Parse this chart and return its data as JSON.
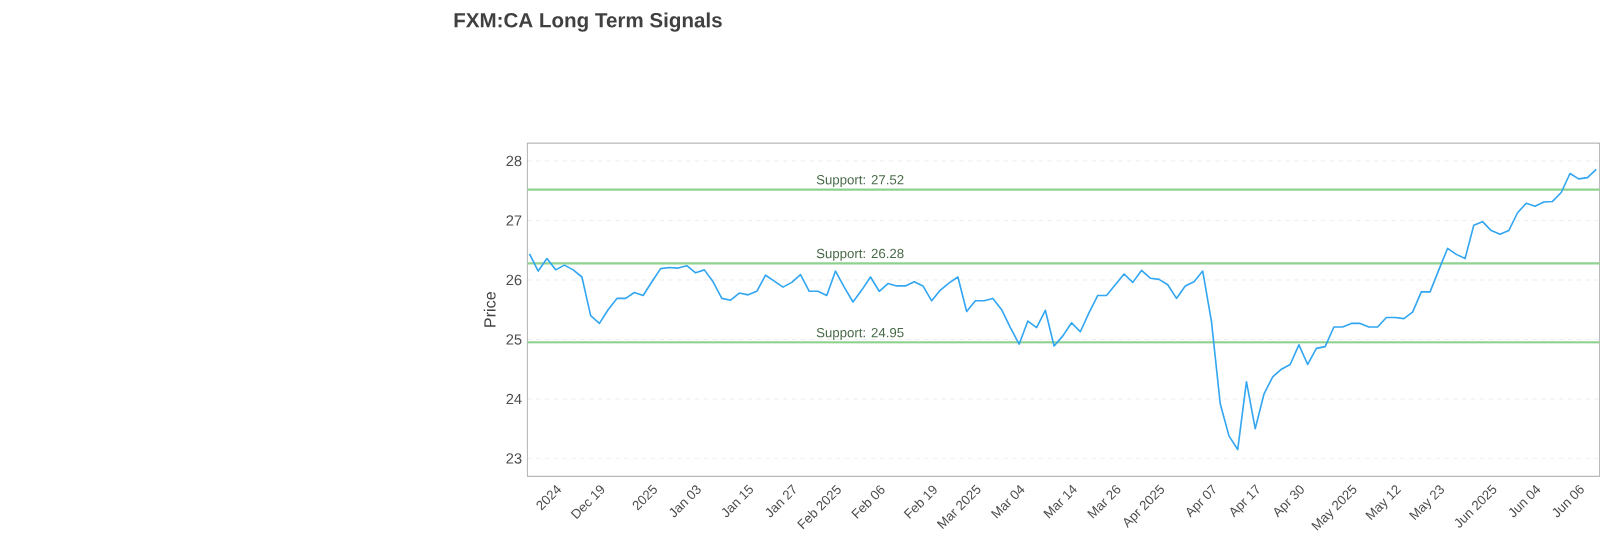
{
  "chart_data": {
    "type": "line",
    "title": "FXM:CA Long Term Signals",
    "ylabel": "Price",
    "categories": [
      null,
      null,
      null,
      "2024",
      null,
      null,
      null,
      null,
      "Dec 19",
      null,
      null,
      null,
      null,
      null,
      "2025",
      null,
      null,
      null,
      null,
      "Jan 03",
      null,
      null,
      null,
      null,
      null,
      "Jan 15",
      null,
      null,
      null,
      null,
      "Jan 27",
      null,
      null,
      null,
      null,
      "Feb 2025",
      null,
      null,
      null,
      null,
      "Feb 06",
      null,
      null,
      null,
      null,
      null,
      "Feb 19",
      null,
      null,
      null,
      null,
      "Mar 2025",
      null,
      null,
      null,
      null,
      "Mar 04",
      null,
      null,
      null,
      null,
      null,
      "Mar 14",
      null,
      null,
      null,
      null,
      "Mar 26",
      null,
      null,
      null,
      null,
      "Apr 2025",
      null,
      null,
      null,
      null,
      null,
      "Apr 07",
      null,
      null,
      null,
      null,
      "Apr 17",
      null,
      null,
      null,
      null,
      "Apr 30",
      null,
      null,
      null,
      null,
      null,
      "May 2025",
      null,
      null,
      null,
      null,
      "May 12",
      null,
      null,
      null,
      null,
      "May 23",
      null,
      null,
      null,
      null,
      null,
      "Jun 2025",
      null,
      null,
      null,
      null,
      "Jun 04",
      null,
      null,
      null,
      null,
      "Jun 06",
      null,
      null
    ],
    "series": [
      {
        "color": "#33a6f2",
        "values": [
          26.44,
          26.15,
          26.36,
          26.17,
          26.25,
          26.17,
          26.05,
          25.4,
          25.27,
          25.5,
          25.69,
          25.69,
          25.79,
          25.74,
          25.97,
          26.19,
          26.21,
          26.2,
          26.24,
          26.12,
          26.17,
          25.97,
          25.69,
          25.66,
          25.78,
          25.75,
          25.81,
          26.08,
          25.98,
          25.88,
          25.96,
          26.09,
          25.81,
          25.81,
          25.74,
          26.15,
          25.88,
          25.63,
          25.83,
          26.05,
          25.81,
          25.94,
          25.9,
          25.9,
          25.97,
          25.9,
          25.65,
          25.83,
          25.95,
          26.05,
          25.47,
          25.65,
          25.65,
          25.69,
          25.5,
          25.2,
          24.92,
          25.31,
          25.2,
          25.49,
          24.89,
          25.06,
          25.28,
          25.13,
          25.45,
          25.74,
          25.74,
          25.92,
          26.1,
          25.96,
          26.16,
          26.03,
          26.01,
          25.92,
          25.69,
          25.9,
          25.97,
          26.15,
          25.3,
          23.92,
          23.38,
          23.15,
          24.29,
          23.5,
          24.08,
          24.37,
          24.5,
          24.58,
          24.91,
          24.58,
          24.85,
          24.88,
          25.21,
          25.21,
          25.27,
          25.27,
          25.21,
          25.21,
          25.37,
          25.37,
          25.35,
          25.46,
          25.8,
          25.8,
          26.17,
          26.53,
          26.43,
          26.36,
          26.92,
          26.98,
          26.83,
          26.77,
          26.83,
          27.13,
          27.29,
          27.24,
          27.31,
          27.32,
          27.47,
          27.79,
          27.7,
          27.72,
          27.86
        ]
      }
    ],
    "ylim": [
      22.7,
      28.3
    ],
    "yticks": [
      23,
      24,
      25,
      26,
      27,
      28
    ],
    "grid": "y",
    "marker": "none",
    "line_style": "solid",
    "ref_lines": [
      {
        "axis": "y",
        "value": 27.52,
        "label": "Support: 27.52",
        "color": "#8fd18f"
      },
      {
        "axis": "y",
        "value": 26.28,
        "label": "Support: 26.28",
        "color": "#8fd18f"
      },
      {
        "axis": "y",
        "value": 24.95,
        "label": "Support: 24.95",
        "color": "#8fd18f"
      }
    ]
  }
}
